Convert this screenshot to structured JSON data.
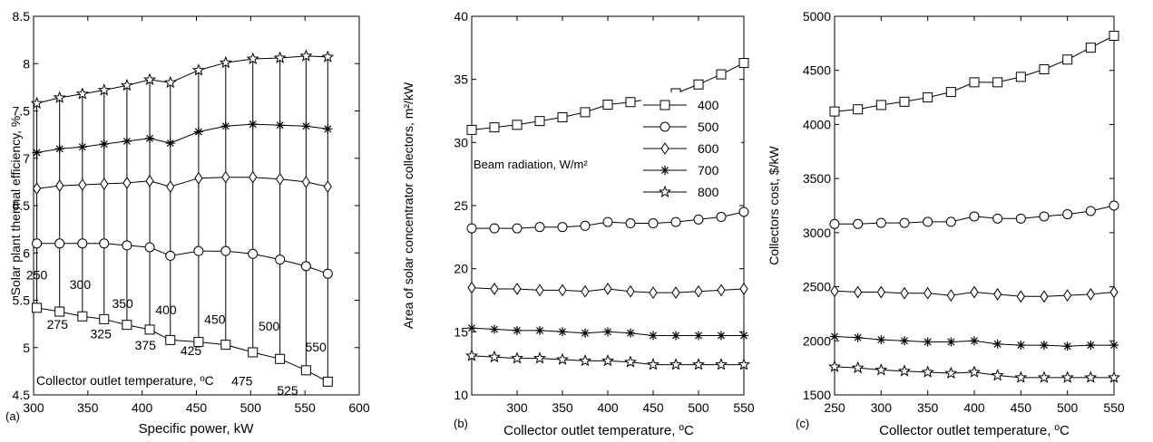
{
  "chart_data": [
    {
      "type": "line",
      "panel_label": "(a)",
      "xlabel": "Specific power, kW",
      "ylabel": "Solar plant thermal efficiency, %",
      "xlim": [
        300,
        600
      ],
      "ylim": [
        4.5,
        8.5
      ],
      "xticks": [
        300,
        350,
        400,
        450,
        500,
        550,
        600
      ],
      "yticks": [
        4.5,
        5,
        5.5,
        6,
        6.5,
        7,
        7.5,
        8,
        8.5
      ],
      "xtick_labels": [
        "300",
        "350",
        "400",
        "450",
        "500",
        "550",
        "600"
      ],
      "ytick_labels": [
        "4.5",
        "5",
        "5.5",
        "6",
        "6.5",
        "7",
        "7.5",
        "8",
        "8.5"
      ],
      "grid": false,
      "x": [
        303,
        324,
        345,
        365,
        386,
        407,
        426,
        452,
        477,
        502,
        527,
        551,
        571
      ],
      "series": [
        {
          "name": "400",
          "marker": "square",
          "values": [
            5.42,
            5.38,
            5.33,
            5.3,
            5.24,
            5.19,
            5.08,
            5.06,
            5.03,
            4.95,
            4.88,
            4.76,
            4.64
          ]
        },
        {
          "name": "500",
          "marker": "circle",
          "values": [
            6.1,
            6.1,
            6.1,
            6.1,
            6.08,
            6.06,
            5.97,
            6.02,
            6.02,
            5.99,
            5.93,
            5.86,
            5.78
          ]
        },
        {
          "name": "600",
          "marker": "diamond",
          "values": [
            6.68,
            6.71,
            6.72,
            6.73,
            6.74,
            6.76,
            6.7,
            6.79,
            6.8,
            6.8,
            6.78,
            6.75,
            6.7
          ]
        },
        {
          "name": "700",
          "marker": "asterisk",
          "values": [
            7.06,
            7.1,
            7.12,
            7.15,
            7.18,
            7.21,
            7.16,
            7.28,
            7.34,
            7.36,
            7.35,
            7.34,
            7.31
          ]
        },
        {
          "name": "800",
          "marker": "star",
          "values": [
            7.58,
            7.64,
            7.68,
            7.72,
            7.77,
            7.83,
            7.8,
            7.93,
            8.01,
            8.05,
            8.06,
            8.08,
            8.07
          ]
        }
      ],
      "annotation": "Collector outlet temperature, ºC",
      "temperature_labels": [
        {
          "text": "250",
          "x": 303,
          "y": 5.72
        },
        {
          "text": "275",
          "x": 322,
          "y": 5.2
        },
        {
          "text": "300",
          "x": 343,
          "y": 5.62
        },
        {
          "text": "325",
          "x": 362,
          "y": 5.1
        },
        {
          "text": "350",
          "x": 382,
          "y": 5.42
        },
        {
          "text": "375",
          "x": 403,
          "y": 4.98
        },
        {
          "text": "400",
          "x": 422,
          "y": 5.35
        },
        {
          "text": "425",
          "x": 445,
          "y": 4.92
        },
        {
          "text": "450",
          "x": 467,
          "y": 5.25
        },
        {
          "text": "475",
          "x": 492,
          "y": 4.6
        },
        {
          "text": "500",
          "x": 517,
          "y": 5.18
        },
        {
          "text": "525",
          "x": 534,
          "y": 4.5
        },
        {
          "text": "550",
          "x": 560,
          "y": 4.96
        }
      ]
    },
    {
      "type": "line",
      "panel_label": "(b)",
      "xlabel": "Collector outlet temperature, ºC",
      "ylabel": "Area of solar concentrator collectors, m²/kW",
      "xlim": [
        250,
        550
      ],
      "ylim": [
        10,
        40
      ],
      "xticks": [
        300,
        350,
        400,
        450,
        500,
        550
      ],
      "yticks": [
        10,
        15,
        20,
        25,
        30,
        35,
        40
      ],
      "xtick_labels": [
        "300",
        "350",
        "400",
        "450",
        "500",
        "550"
      ],
      "ytick_labels": [
        "10",
        "15",
        "20",
        "25",
        "30",
        "35",
        "40"
      ],
      "grid": false,
      "x": [
        250,
        275,
        300,
        325,
        350,
        375,
        400,
        425,
        450,
        475,
        500,
        525,
        550
      ],
      "series": [
        {
          "name": "400",
          "marker": "square",
          "values": [
            31.0,
            31.2,
            31.4,
            31.7,
            32.0,
            32.4,
            33.0,
            33.2,
            33.5,
            33.9,
            34.6,
            35.4,
            36.3
          ]
        },
        {
          "name": "500",
          "marker": "circle",
          "values": [
            23.2,
            23.2,
            23.2,
            23.3,
            23.3,
            23.4,
            23.7,
            23.6,
            23.6,
            23.7,
            23.9,
            24.1,
            24.5
          ]
        },
        {
          "name": "600",
          "marker": "diamond",
          "values": [
            18.5,
            18.4,
            18.4,
            18.3,
            18.3,
            18.2,
            18.4,
            18.2,
            18.1,
            18.1,
            18.2,
            18.3,
            18.4
          ]
        },
        {
          "name": "700",
          "marker": "asterisk",
          "values": [
            15.3,
            15.2,
            15.1,
            15.1,
            15.0,
            14.9,
            15.0,
            14.9,
            14.7,
            14.7,
            14.7,
            14.7,
            14.7
          ]
        },
        {
          "name": "800",
          "marker": "star",
          "values": [
            13.1,
            13.0,
            12.9,
            12.9,
            12.8,
            12.7,
            12.7,
            12.6,
            12.4,
            12.4,
            12.4,
            12.4,
            12.4
          ]
        }
      ],
      "legend_title": "Beam radiation, W/m²",
      "legend_position": "right"
    },
    {
      "type": "line",
      "panel_label": "(c)",
      "xlabel": "Collector outlet temperature, ºC",
      "ylabel": "Collectors cost, $/kW",
      "xlim": [
        250,
        550
      ],
      "ylim": [
        1500,
        5000
      ],
      "xticks": [
        250,
        300,
        350,
        400,
        450,
        500,
        550
      ],
      "yticks": [
        1500,
        2000,
        2500,
        3000,
        3500,
        4000,
        4500,
        5000
      ],
      "xtick_labels": [
        "250",
        "300",
        "350",
        "400",
        "450",
        "500",
        "550"
      ],
      "ytick_labels": [
        "1500",
        "2000",
        "2500",
        "3000",
        "3500",
        "4000",
        "4500",
        "5000"
      ],
      "grid": false,
      "x": [
        250,
        275,
        300,
        325,
        350,
        375,
        400,
        425,
        450,
        475,
        500,
        525,
        550
      ],
      "series": [
        {
          "name": "400",
          "marker": "square",
          "values": [
            4120,
            4140,
            4180,
            4210,
            4250,
            4300,
            4390,
            4390,
            4440,
            4510,
            4600,
            4710,
            4820
          ]
        },
        {
          "name": "500",
          "marker": "circle",
          "values": [
            3080,
            3080,
            3090,
            3090,
            3100,
            3100,
            3150,
            3130,
            3130,
            3150,
            3170,
            3200,
            3250
          ]
        },
        {
          "name": "600",
          "marker": "diamond",
          "values": [
            2460,
            2450,
            2450,
            2440,
            2440,
            2420,
            2450,
            2430,
            2410,
            2410,
            2420,
            2430,
            2450
          ]
        },
        {
          "name": "700",
          "marker": "asterisk",
          "values": [
            2040,
            2030,
            2010,
            2000,
            1990,
            1990,
            2000,
            1970,
            1960,
            1960,
            1950,
            1960,
            1960
          ]
        },
        {
          "name": "800",
          "marker": "star",
          "values": [
            1760,
            1750,
            1730,
            1720,
            1710,
            1700,
            1710,
            1680,
            1660,
            1660,
            1660,
            1660,
            1660
          ]
        }
      ]
    }
  ]
}
